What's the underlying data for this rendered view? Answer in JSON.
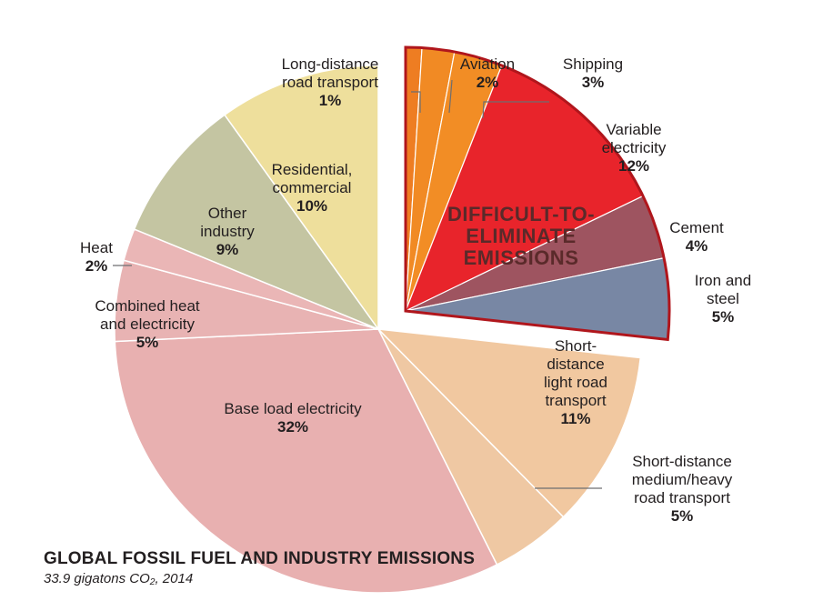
{
  "chart_data": {
    "type": "pie",
    "title": "GLOBAL FOSSIL FUEL AND INDUSTRY EMISSIONS",
    "subtitle": "33.9 gigatons CO₂, 2014",
    "group_label": [
      "DIFFICULT-TO-",
      "ELIMINATE",
      "EMISSIONS"
    ],
    "slices": [
      {
        "label": [
          "Long-distance",
          "road transport"
        ],
        "value": 1,
        "pct": "1%",
        "color": "#ee7d22",
        "exploded": true
      },
      {
        "label": [
          "Aviation"
        ],
        "value": 2,
        "pct": "2%",
        "color": "#f18a24",
        "exploded": true
      },
      {
        "label": [
          "Shipping"
        ],
        "value": 3,
        "pct": "3%",
        "color": "#f28d25",
        "exploded": true
      },
      {
        "label": [
          "Variable",
          "electricity"
        ],
        "value": 12,
        "pct": "12%",
        "color": "#e8242b",
        "exploded": true
      },
      {
        "label": [
          "Cement"
        ],
        "value": 4,
        "pct": "4%",
        "color": "#9e5460",
        "exploded": true
      },
      {
        "label": [
          "Iron and",
          "steel"
        ],
        "value": 5,
        "pct": "5%",
        "color": "#7887a4",
        "exploded": true
      },
      {
        "label": [
          "Short-",
          "distance",
          "light road",
          "transport"
        ],
        "value": 11,
        "pct": "11%",
        "color": "#f1c8a0",
        "exploded": false
      },
      {
        "label": [
          "Short-distance",
          "medium/heavy",
          "road transport"
        ],
        "value": 5,
        "pct": "5%",
        "color": "#efc8a3",
        "exploded": false
      },
      {
        "label": [
          "Base load electricity"
        ],
        "value": 32,
        "pct": "32%",
        "color": "#e8b0b0",
        "exploded": false
      },
      {
        "label": [
          "Combined heat",
          "and electricity"
        ],
        "value": 5,
        "pct": "5%",
        "color": "#e8b3b3",
        "exploded": false
      },
      {
        "label": [
          "Heat"
        ],
        "value": 2,
        "pct": "2%",
        "color": "#eab6b6",
        "exploded": false
      },
      {
        "label": [
          "Other",
          "industry"
        ],
        "value": 9,
        "pct": "9%",
        "color": "#c4c5a2",
        "exploded": false
      },
      {
        "label": [
          "Residential,",
          "commercial"
        ],
        "value": 10,
        "pct": "10%",
        "color": "#eedf9c",
        "exploded": false
      }
    ]
  }
}
